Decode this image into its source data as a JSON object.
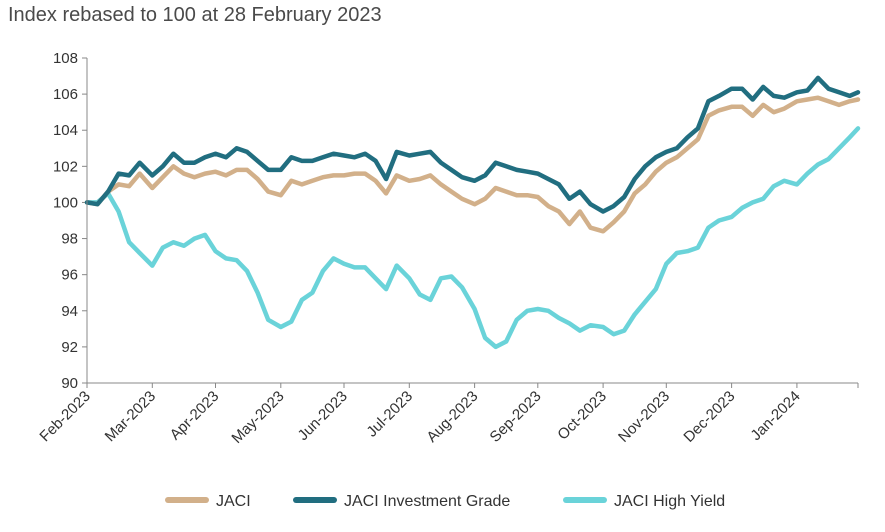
{
  "chart_data": {
    "type": "line",
    "title": "Index rebased to 100 at 28 February 2023",
    "xlabel": "",
    "ylabel": "",
    "ylim": [
      90,
      108
    ],
    "y_ticks": [
      "90",
      "92",
      "94",
      "96",
      "98",
      "100",
      "102",
      "104",
      "106",
      "108"
    ],
    "x_ticks": [
      "Feb-2023",
      "Mar-2023",
      "Apr-2023",
      "May-2023",
      "Jun-2023",
      "Jul-2023",
      "Aug-2023",
      "Sep-2023",
      "Oct-2023",
      "Nov-2023",
      "Dec-2023",
      "Jan-2024"
    ],
    "x_tick_dates": [
      "2023-02-28",
      "2023-03-31",
      "2023-04-30",
      "2023-05-31",
      "2023-06-30",
      "2023-07-31",
      "2023-08-31",
      "2023-09-30",
      "2023-10-31",
      "2023-11-30",
      "2023-12-31",
      "2024-01-31"
    ],
    "x_range": [
      "2023-02-28",
      "2024-02-29"
    ],
    "legend_position": "bottom",
    "grid": false,
    "series": [
      {
        "name": "JACI",
        "color": "#d2b08a",
        "x": [
          "2023-02-28",
          "2023-03-05",
          "2023-03-10",
          "2023-03-15",
          "2023-03-20",
          "2023-03-25",
          "2023-03-31",
          "2023-04-05",
          "2023-04-10",
          "2023-04-15",
          "2023-04-20",
          "2023-04-25",
          "2023-04-30",
          "2023-05-05",
          "2023-05-10",
          "2023-05-15",
          "2023-05-20",
          "2023-05-25",
          "2023-05-31",
          "2023-06-05",
          "2023-06-10",
          "2023-06-15",
          "2023-06-20",
          "2023-06-25",
          "2023-06-30",
          "2023-07-05",
          "2023-07-10",
          "2023-07-15",
          "2023-07-20",
          "2023-07-25",
          "2023-07-31",
          "2023-08-05",
          "2023-08-10",
          "2023-08-15",
          "2023-08-20",
          "2023-08-25",
          "2023-08-31",
          "2023-09-05",
          "2023-09-10",
          "2023-09-15",
          "2023-09-20",
          "2023-09-25",
          "2023-09-30",
          "2023-10-05",
          "2023-10-10",
          "2023-10-15",
          "2023-10-20",
          "2023-10-25",
          "2023-10-31",
          "2023-11-05",
          "2023-11-10",
          "2023-11-15",
          "2023-11-20",
          "2023-11-25",
          "2023-11-30",
          "2023-12-05",
          "2023-12-10",
          "2023-12-15",
          "2023-12-20",
          "2023-12-25",
          "2023-12-31",
          "2024-01-05",
          "2024-01-10",
          "2024-01-15",
          "2024-01-20",
          "2024-01-25",
          "2024-01-31",
          "2024-02-05",
          "2024-02-10",
          "2024-02-15",
          "2024-02-20",
          "2024-02-25",
          "2024-02-29"
        ],
        "y": [
          100.0,
          99.9,
          100.6,
          101.0,
          100.9,
          101.6,
          100.8,
          101.4,
          102.0,
          101.6,
          101.4,
          101.6,
          101.7,
          101.5,
          101.8,
          101.8,
          101.3,
          100.6,
          100.4,
          101.2,
          101.0,
          101.2,
          101.4,
          101.5,
          101.5,
          101.6,
          101.6,
          101.2,
          100.5,
          101.5,
          101.2,
          101.3,
          101.5,
          101.0,
          100.6,
          100.2,
          99.9,
          100.2,
          100.8,
          100.6,
          100.4,
          100.4,
          100.3,
          99.8,
          99.5,
          98.8,
          99.5,
          98.6,
          98.4,
          98.9,
          99.5,
          100.5,
          101.0,
          101.7,
          102.2,
          102.5,
          103.0,
          103.5,
          104.8,
          105.1,
          105.3,
          105.3,
          104.8,
          105.4,
          105.0,
          105.2,
          105.6,
          105.7,
          105.8,
          105.6,
          105.4,
          105.6,
          105.7
        ],
        "legend_label": "JACI"
      },
      {
        "name": "JACI Investment Grade",
        "color": "#216e80",
        "x": [
          "2023-02-28",
          "2023-03-05",
          "2023-03-10",
          "2023-03-15",
          "2023-03-20",
          "2023-03-25",
          "2023-03-31",
          "2023-04-05",
          "2023-04-10",
          "2023-04-15",
          "2023-04-20",
          "2023-04-25",
          "2023-04-30",
          "2023-05-05",
          "2023-05-10",
          "2023-05-15",
          "2023-05-20",
          "2023-05-25",
          "2023-05-31",
          "2023-06-05",
          "2023-06-10",
          "2023-06-15",
          "2023-06-20",
          "2023-06-25",
          "2023-06-30",
          "2023-07-05",
          "2023-07-10",
          "2023-07-15",
          "2023-07-20",
          "2023-07-25",
          "2023-07-31",
          "2023-08-05",
          "2023-08-10",
          "2023-08-15",
          "2023-08-20",
          "2023-08-25",
          "2023-08-31",
          "2023-09-05",
          "2023-09-10",
          "2023-09-15",
          "2023-09-20",
          "2023-09-25",
          "2023-09-30",
          "2023-10-05",
          "2023-10-10",
          "2023-10-15",
          "2023-10-20",
          "2023-10-25",
          "2023-10-31",
          "2023-11-05",
          "2023-11-10",
          "2023-11-15",
          "2023-11-20",
          "2023-11-25",
          "2023-11-30",
          "2023-12-05",
          "2023-12-10",
          "2023-12-15",
          "2023-12-20",
          "2023-12-25",
          "2023-12-31",
          "2024-01-05",
          "2024-01-10",
          "2024-01-15",
          "2024-01-20",
          "2024-01-25",
          "2024-01-31",
          "2024-02-05",
          "2024-02-10",
          "2024-02-15",
          "2024-02-20",
          "2024-02-25",
          "2024-02-29"
        ],
        "y": [
          100.0,
          99.9,
          100.6,
          101.6,
          101.5,
          102.2,
          101.5,
          102.0,
          102.7,
          102.2,
          102.2,
          102.5,
          102.7,
          102.5,
          103.0,
          102.8,
          102.3,
          101.8,
          101.8,
          102.5,
          102.3,
          102.3,
          102.5,
          102.7,
          102.6,
          102.5,
          102.7,
          102.3,
          101.3,
          102.8,
          102.6,
          102.7,
          102.8,
          102.2,
          101.8,
          101.4,
          101.2,
          101.5,
          102.2,
          102.0,
          101.8,
          101.7,
          101.6,
          101.3,
          101.0,
          100.2,
          100.6,
          99.9,
          99.5,
          99.8,
          100.3,
          101.3,
          102.0,
          102.5,
          102.8,
          103.0,
          103.6,
          104.1,
          105.6,
          105.9,
          106.3,
          106.3,
          105.7,
          106.4,
          105.9,
          105.8,
          106.1,
          106.2,
          106.9,
          106.3,
          106.1,
          105.9,
          106.1
        ],
        "legend_label": "JACI Investment Grade"
      },
      {
        "name": "JACI High Yield",
        "color": "#6ad3d9",
        "x": [
          "2023-02-28",
          "2023-03-05",
          "2023-03-10",
          "2023-03-15",
          "2023-03-20",
          "2023-03-25",
          "2023-03-31",
          "2023-04-05",
          "2023-04-10",
          "2023-04-15",
          "2023-04-20",
          "2023-04-25",
          "2023-04-30",
          "2023-05-05",
          "2023-05-10",
          "2023-05-15",
          "2023-05-20",
          "2023-05-25",
          "2023-05-31",
          "2023-06-05",
          "2023-06-10",
          "2023-06-15",
          "2023-06-20",
          "2023-06-25",
          "2023-06-30",
          "2023-07-05",
          "2023-07-10",
          "2023-07-15",
          "2023-07-20",
          "2023-07-25",
          "2023-07-31",
          "2023-08-05",
          "2023-08-10",
          "2023-08-15",
          "2023-08-20",
          "2023-08-25",
          "2023-08-31",
          "2023-09-05",
          "2023-09-10",
          "2023-09-15",
          "2023-09-20",
          "2023-09-25",
          "2023-09-30",
          "2023-10-05",
          "2023-10-10",
          "2023-10-15",
          "2023-10-20",
          "2023-10-25",
          "2023-10-31",
          "2023-11-05",
          "2023-11-10",
          "2023-11-15",
          "2023-11-20",
          "2023-11-25",
          "2023-11-30",
          "2023-12-05",
          "2023-12-10",
          "2023-12-15",
          "2023-12-20",
          "2023-12-25",
          "2023-12-31",
          "2024-01-05",
          "2024-01-10",
          "2024-01-15",
          "2024-01-20",
          "2024-01-25",
          "2024-01-31",
          "2024-02-05",
          "2024-02-10",
          "2024-02-15",
          "2024-02-20",
          "2024-02-25",
          "2024-02-29"
        ],
        "y": [
          100.0,
          100.0,
          100.5,
          99.5,
          97.8,
          97.2,
          96.5,
          97.5,
          97.8,
          97.6,
          98.0,
          98.2,
          97.3,
          96.9,
          96.8,
          96.2,
          95.0,
          93.5,
          93.1,
          93.4,
          94.6,
          95.0,
          96.2,
          96.9,
          96.6,
          96.4,
          96.4,
          95.8,
          95.2,
          96.5,
          95.8,
          94.9,
          94.6,
          95.8,
          95.9,
          95.3,
          94.1,
          92.5,
          92.0,
          92.3,
          93.5,
          94.0,
          94.1,
          94.0,
          93.6,
          93.3,
          92.9,
          93.2,
          93.1,
          92.7,
          92.9,
          93.8,
          94.5,
          95.2,
          96.6,
          97.2,
          97.3,
          97.5,
          98.6,
          99.0,
          99.2,
          99.7,
          100.0,
          100.2,
          100.9,
          101.2,
          101.0,
          101.6,
          102.1,
          102.4,
          103.0,
          103.6,
          104.1
        ],
        "legend_label": "JACI High Yield"
      }
    ]
  }
}
